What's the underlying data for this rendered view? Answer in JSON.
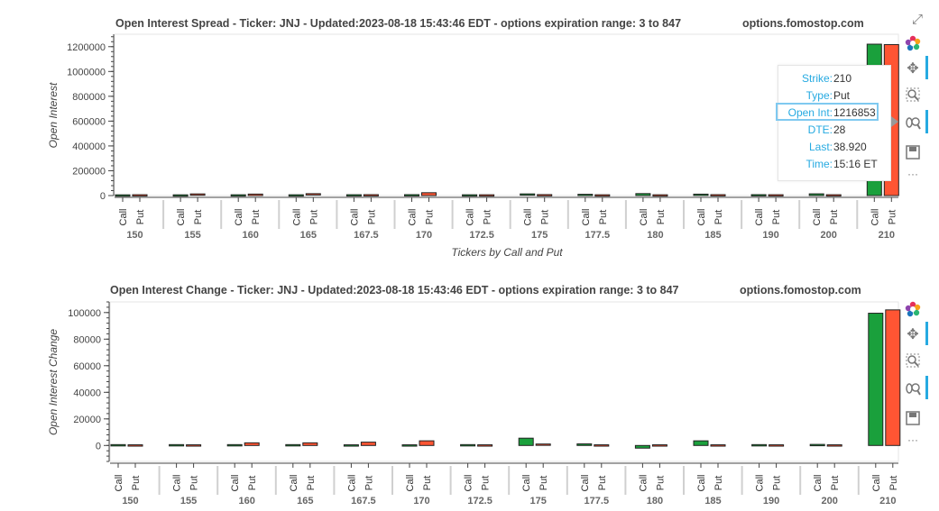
{
  "chart_data": [
    {
      "type": "bar",
      "title": "Open Interest Spread - Ticker: JNJ - Updated:2023-08-18 15:43:46 EDT - options expiration range: 3 to 847",
      "source_label": "options.fomostop.com",
      "xlabel": "Tickers by Call and Put",
      "ylabel": "Open Interest",
      "ylim": [
        0,
        1300000
      ],
      "yticks": [
        0,
        200000,
        400000,
        600000,
        800000,
        1000000,
        1200000
      ],
      "categories": [
        "150",
        "155",
        "160",
        "165",
        "167.5",
        "170",
        "172.5",
        "175",
        "177.5",
        "180",
        "185",
        "190",
        "200",
        "210"
      ],
      "subcategories": [
        "Call",
        "Put"
      ],
      "series": [
        {
          "name": "Call",
          "color": "#1aa03c",
          "values": [
            500,
            600,
            1000,
            1000,
            1500,
            2000,
            1000,
            8000,
            5000,
            16000,
            6000,
            2000,
            14000,
            1220000
          ]
        },
        {
          "name": "Put",
          "color": "#ff5533",
          "values": [
            1500,
            8000,
            12000,
            10000,
            2000,
            23000,
            1000,
            2500,
            1000,
            1000,
            2000,
            1500,
            1500,
            1216853
          ]
        }
      ]
    },
    {
      "type": "bar",
      "title": "Open Interest Change - Ticker: JNJ - Updated:2023-08-18 15:43:46 EDT - options expiration range: 3 to 847",
      "source_label": "options.fomostop.com",
      "ylabel": "Open Interest Change",
      "ylim": [
        -12000,
        108000
      ],
      "yticks": [
        0,
        20000,
        40000,
        60000,
        80000,
        100000
      ],
      "categories": [
        "150",
        "155",
        "160",
        "165",
        "167.5",
        "170",
        "172.5",
        "175",
        "177.5",
        "180",
        "185",
        "190",
        "200",
        "210"
      ],
      "subcategories": [
        "Call",
        "Put"
      ],
      "series": [
        {
          "name": "Call",
          "color": "#1aa03c",
          "values": [
            150,
            150,
            150,
            150,
            0,
            0,
            150,
            5500,
            1200,
            -2000,
            3500,
            150,
            300,
            99500
          ]
        },
        {
          "name": "Put",
          "color": "#ff5533",
          "values": [
            0,
            0,
            2000,
            2000,
            2500,
            3500,
            0,
            600,
            0,
            0,
            0,
            0,
            0,
            102000
          ]
        }
      ]
    }
  ],
  "tooltip": [
    {
      "key": "Strike:",
      "value": "210"
    },
    {
      "key": "Type:",
      "value": "Put"
    },
    {
      "key": "Open Int:",
      "value": "1216853"
    },
    {
      "key": "DTE:",
      "value": "28"
    },
    {
      "key": "Last:",
      "value": "38.920"
    },
    {
      "key": "Time:",
      "value": "15:16 ET"
    }
  ],
  "toolbar": {
    "icons": [
      "bokeh-logo-icon",
      "pan-icon",
      "box-zoom-icon",
      "wheel-zoom-icon",
      "save-icon",
      "more-icon"
    ],
    "more_label": "···"
  },
  "colors": {
    "call": "#1aa03c",
    "put": "#ff5533",
    "accent": "#26aae1"
  }
}
